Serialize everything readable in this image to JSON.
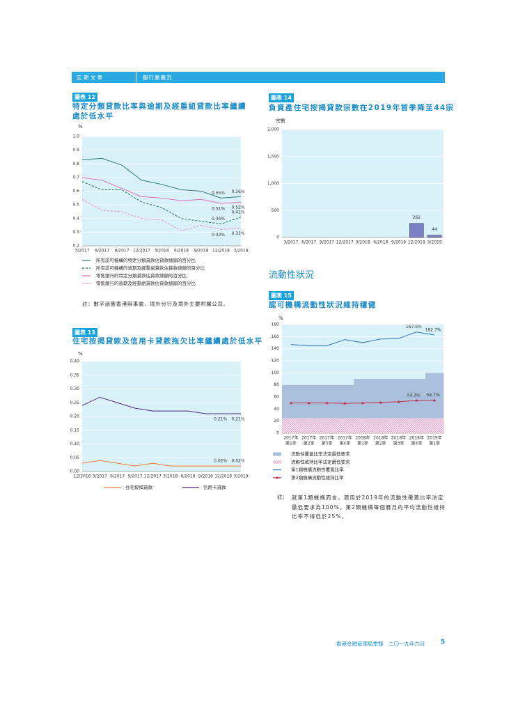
{
  "header": {
    "section": "定 期 文 章",
    "subsection": "銀行業概況"
  },
  "chart_data": [
    {
      "type": "line",
      "label": "圖表 12",
      "title": "特定分類貸款比率與逾期及經重組貸款比率繼續處於低水平",
      "y_label": "%",
      "categories": [
        "3/2017",
        "6/2017",
        "9/2017",
        "12/2017",
        "3/2018",
        "6/2018",
        "9/2018",
        "12/2018",
        "3/2019"
      ],
      "ylim": [
        0.2,
        1
      ],
      "yticks": [
        0.2,
        0.3,
        0.4,
        0.5,
        0.6,
        0.7,
        0.8,
        0.9,
        {
          "value": 1,
          "label": "1.0"
        }
      ],
      "grid": true,
      "series": [
        {
          "name": "所有認可機構的特定分類貸款佔貸款總額的百分比",
          "color": "#2b7a78",
          "values": [
            0.83,
            0.84,
            0.79,
            0.68,
            0.65,
            0.61,
            0.6,
            0.55,
            0.56
          ],
          "value_labels": [
            null,
            null,
            null,
            null,
            null,
            null,
            null,
            "0.55%",
            "0.56%"
          ]
        },
        {
          "name": "所有認可機構的逾期及經重組貸款佔貸款總額的百分比",
          "color": "#1e6b4a",
          "dashed": true,
          "values": [
            0.67,
            0.61,
            0.61,
            0.52,
            0.48,
            0.4,
            0.38,
            0.36,
            0.41
          ],
          "value_labels": [
            null,
            null,
            null,
            null,
            null,
            null,
            null,
            "0.36%",
            "0.41%"
          ]
        },
        {
          "name": "零售銀行的特定分類貸款佔貸款總額的百分比",
          "color": "#e06fb8",
          "values": [
            0.7,
            0.68,
            0.62,
            0.56,
            0.55,
            0.53,
            0.54,
            0.51,
            0.52
          ],
          "value_labels": [
            null,
            null,
            null,
            null,
            null,
            null,
            null,
            "0.51%",
            "0.52%"
          ]
        },
        {
          "name": "零售銀行的逾期及經重組貸款佔貸款總額的百分比",
          "color": "#f08cc6",
          "dashed": true,
          "values": [
            0.54,
            0.46,
            0.45,
            0.4,
            0.39,
            0.31,
            0.35,
            0.32,
            0.33
          ],
          "value_labels": [
            null,
            null,
            null,
            null,
            null,
            null,
            null,
            "0.32%",
            "0.33%"
          ]
        }
      ],
      "note": "註：數字涵蓋香港辦事處、境外分行及境外主要附屬公司。"
    },
    {
      "type": "line",
      "label": "圖表 13",
      "title": "住宅按揭貸款及信用卡貸款拖欠比率繼續處於低水平",
      "y_label": "%",
      "categories": [
        "12/2016",
        "3/2017",
        "6/2017",
        "9/2017",
        "12/2017",
        "3/2018",
        "6/2018",
        "9/2018",
        "12/2018",
        "3/2019"
      ],
      "ylim": [
        0,
        0.4
      ],
      "yticks": [
        {
          "value": 0,
          "label": "0.00"
        },
        0.05,
        {
          "value": 0.1,
          "label": "0.10"
        },
        0.15,
        {
          "value": 0.2,
          "label": "0.20"
        },
        0.25,
        {
          "value": 0.3,
          "label": "0.30"
        },
        0.35,
        {
          "value": 0.4,
          "label": "0.40"
        }
      ],
      "grid": true,
      "series": [
        {
          "name": "住宅按揭貸款",
          "color": "#f07a3a",
          "values": [
            0.03,
            0.04,
            0.03,
            0.02,
            0.03,
            0.02,
            0.02,
            0.02,
            0.02,
            0.02
          ],
          "value_labels": [
            null,
            null,
            null,
            null,
            null,
            null,
            null,
            null,
            "0.02%",
            "0.02%"
          ]
        },
        {
          "name": "信用卡貸款",
          "color": "#4b2a7a",
          "values": [
            0.24,
            0.27,
            0.25,
            0.23,
            0.22,
            0.22,
            0.22,
            0.21,
            0.21,
            0.21
          ],
          "value_labels": [
            null,
            null,
            null,
            null,
            null,
            null,
            null,
            null,
            "0.21%",
            "0.21%"
          ]
        }
      ]
    },
    {
      "type": "bar",
      "label": "圖表 14",
      "title": "負資產住宅按揭貸款宗數在2019年首季降至44宗",
      "y_label": "宗數",
      "categories": [
        "3/2017",
        "6/2017",
        "9/2017",
        "12/2017",
        "3/2018",
        "6/2018",
        "9/2018",
        "12/2018",
        "3/2019"
      ],
      "values": [
        0,
        0,
        0,
        0,
        0,
        0,
        0,
        262,
        44
      ],
      "value_labels": [
        null,
        null,
        null,
        null,
        null,
        null,
        null,
        "262",
        "44"
      ],
      "color": "#7b7fc4",
      "ylim": [
        0,
        2000
      ],
      "yticks": [
        0,
        500,
        {
          "value": 1000,
          "label": "1,000"
        },
        {
          "value": 1500,
          "label": "1,500"
        },
        {
          "value": 2000,
          "label": "2,000"
        }
      ],
      "grid": true
    },
    {
      "type": "line",
      "label": "圖表 15",
      "title": "認可機構流動性狀況維持穩健",
      "y_label": "%",
      "categories": [
        [
          "2017年",
          "第1季"
        ],
        [
          "2017年",
          "第2季"
        ],
        [
          "2017年",
          "第3季"
        ],
        [
          "2017年",
          "第4季"
        ],
        [
          "2018年",
          "第1季"
        ],
        [
          "2018年",
          "第2季"
        ],
        [
          "2018年",
          "第3季"
        ],
        [
          "2018年",
          "第4季"
        ],
        [
          "2019年",
          "第1季"
        ]
      ],
      "ylim": [
        0,
        180
      ],
      "yticks": [
        0,
        20,
        40,
        60,
        80,
        100,
        120,
        140,
        160,
        180
      ],
      "grid": true,
      "series": [
        {
          "name": "流動性覆蓋比率法定最低要求",
          "type": "area",
          "color": "#a9bfdc",
          "values": [
            80,
            80,
            80,
            80,
            90,
            90,
            90,
            90,
            100
          ]
        },
        {
          "name": "流動性維持比率法定最低要求",
          "type": "area",
          "hatch": true,
          "color": "#e58fc4",
          "values": [
            25,
            25,
            25,
            25,
            25,
            25,
            25,
            25,
            25
          ]
        },
        {
          "name": "第1類機構流動性覆蓋比率",
          "type": "line",
          "color": "#2e74b5",
          "values": [
            147,
            145,
            145,
            155,
            150,
            156,
            157,
            167.6,
            162.7
          ],
          "value_labels": [
            null,
            null,
            null,
            null,
            null,
            null,
            null,
            "167.6%",
            "162.7%"
          ]
        },
        {
          "name": "第2類機構流動性維持比率",
          "type": "line",
          "marker": "triangle",
          "color": "#c0304a",
          "values": [
            50,
            50,
            50,
            49.5,
            50,
            51,
            52,
            54.3,
            54.7
          ],
          "value_labels": [
            null,
            null,
            null,
            null,
            null,
            null,
            null,
            "54.3%",
            "54.7%"
          ]
        }
      ],
      "note_label": "註：",
      "note": "就第1類機構而言，適用於2019年的流動性覆蓋比率法定最低要求為100%。第2類機構每個曆月的平均流動性維持比率不得低於25%。"
    }
  ],
  "heading": "流動性狀況",
  "footer": {
    "publication": "香港金融管理局季報　二〇一九年六月",
    "page": "5"
  }
}
